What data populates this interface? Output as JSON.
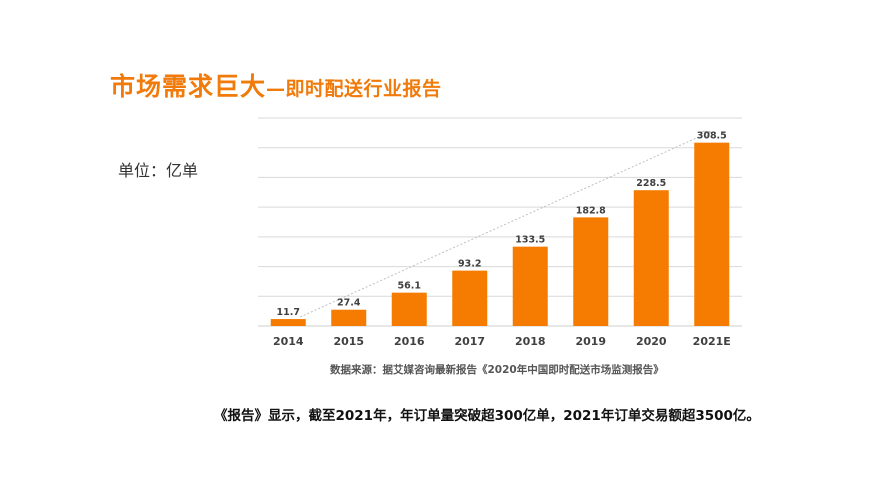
{
  "title": {
    "main": "市场需求巨大",
    "dash": "—",
    "sub": "即时配送行业报告"
  },
  "unit_label": "单位：亿单",
  "source": "数据来源：据艾媒咨询最新报告《2020年中国即时配送市场监测报告》",
  "conclusion": "《报告》显示，截至2021年，年订单量突破超300亿单，2021年订单交易额超3500亿。",
  "colors": {
    "accent": "#f07a0a",
    "bar": "#f57c00",
    "grid": "#d9d9d9",
    "trend": "#bfbfbf"
  },
  "chart_data": {
    "type": "bar",
    "categories": [
      "2014",
      "2015",
      "2016",
      "2017",
      "2018",
      "2019",
      "2020",
      "2021E"
    ],
    "values": [
      11.7,
      27.4,
      56.1,
      93.2,
      133.5,
      182.8,
      228.5,
      308.5
    ],
    "ylim": [
      0,
      350
    ],
    "gridlines": true,
    "trend_arrow": true
  }
}
